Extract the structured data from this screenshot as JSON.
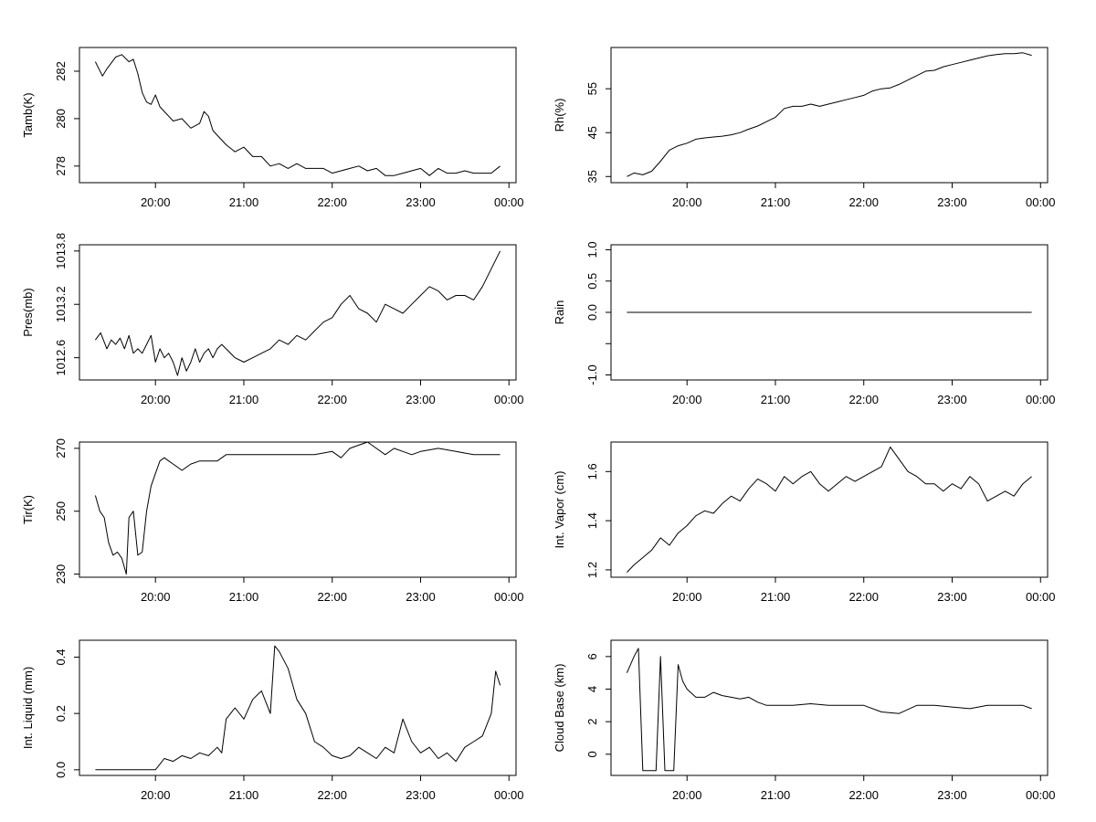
{
  "chart_data": [
    {
      "type": "line",
      "ylabel": "Tamb(K)",
      "ylim": [
        277.3,
        283.0
      ],
      "yticks": [
        "278",
        "280",
        "282"
      ],
      "xlim": [
        19.14,
        24.08
      ],
      "xticks": [
        "20:00",
        "21:00",
        "22:00",
        "23:00",
        "00:00"
      ],
      "x": [
        19.32,
        19.4,
        19.45,
        19.55,
        19.62,
        19.7,
        19.75,
        19.8,
        19.85,
        19.9,
        19.95,
        20.0,
        20.05,
        20.1,
        20.2,
        20.3,
        20.4,
        20.5,
        20.55,
        20.6,
        20.65,
        20.7,
        20.8,
        20.9,
        21.0,
        21.1,
        21.2,
        21.3,
        21.4,
        21.5,
        21.6,
        21.7,
        21.8,
        21.9,
        22.0,
        22.1,
        22.2,
        22.3,
        22.4,
        22.5,
        22.6,
        22.7,
        22.8,
        22.9,
        23.0,
        23.1,
        23.2,
        23.3,
        23.4,
        23.5,
        23.6,
        23.7,
        23.8,
        23.9
      ],
      "values": [
        282.4,
        281.8,
        282.1,
        282.6,
        282.7,
        282.4,
        282.5,
        281.9,
        281.1,
        280.7,
        280.6,
        281.0,
        280.5,
        280.3,
        279.9,
        280.0,
        279.6,
        279.8,
        280.3,
        280.1,
        279.5,
        279.3,
        278.9,
        278.6,
        278.8,
        278.4,
        278.4,
        278.0,
        278.1,
        277.9,
        278.1,
        277.9,
        277.9,
        277.9,
        277.7,
        277.8,
        277.9,
        278.0,
        277.8,
        277.9,
        277.6,
        277.6,
        277.7,
        277.8,
        277.9,
        277.6,
        277.9,
        277.7,
        277.7,
        277.8,
        277.7,
        277.7,
        277.7,
        278.0
      ]
    },
    {
      "type": "line",
      "ylabel": "Rh(%)",
      "ylim": [
        33.6,
        64.4
      ],
      "yticks": [
        "35",
        "45",
        "55"
      ],
      "xlim": [
        19.14,
        24.08
      ],
      "xticks": [
        "20:00",
        "21:00",
        "22:00",
        "23:00",
        "00:00"
      ],
      "x": [
        19.32,
        19.4,
        19.5,
        19.6,
        19.7,
        19.8,
        19.9,
        20.0,
        20.1,
        20.2,
        20.3,
        20.4,
        20.5,
        20.6,
        20.7,
        20.8,
        20.9,
        21.0,
        21.1,
        21.2,
        21.3,
        21.4,
        21.5,
        21.6,
        21.7,
        21.8,
        21.9,
        22.0,
        22.1,
        22.2,
        22.3,
        22.4,
        22.5,
        22.6,
        22.7,
        22.8,
        22.9,
        23.0,
        23.1,
        23.2,
        23.3,
        23.4,
        23.5,
        23.6,
        23.7,
        23.8,
        23.9
      ],
      "values": [
        35.0,
        35.8,
        35.4,
        36.2,
        38.5,
        41.0,
        42.0,
        42.6,
        43.5,
        43.8,
        44.0,
        44.2,
        44.5,
        45.0,
        45.8,
        46.5,
        47.5,
        48.5,
        50.5,
        51.0,
        51.0,
        51.5,
        51.0,
        51.5,
        52.0,
        52.5,
        53.0,
        53.5,
        54.5,
        55.0,
        55.2,
        56.0,
        57.0,
        58.0,
        59.0,
        59.2,
        60.0,
        60.5,
        61.0,
        61.5,
        62.0,
        62.5,
        62.8,
        63.0,
        63.0,
        63.2,
        62.6
      ]
    },
    {
      "type": "line",
      "ylabel": "Pres(mb)",
      "ylim": [
        1012.35,
        1013.87
      ],
      "yticks": [
        "1012.6",
        "1013.2",
        "1013.8"
      ],
      "xlim": [
        19.14,
        24.08
      ],
      "xticks": [
        "20:00",
        "21:00",
        "22:00",
        "23:00",
        "00:00"
      ],
      "x": [
        19.32,
        19.38,
        19.45,
        19.5,
        19.55,
        19.6,
        19.65,
        19.7,
        19.75,
        19.8,
        19.85,
        19.9,
        19.95,
        20.0,
        20.05,
        20.1,
        20.15,
        20.2,
        20.25,
        20.3,
        20.35,
        20.4,
        20.45,
        20.5,
        20.55,
        20.6,
        20.65,
        20.7,
        20.75,
        20.8,
        20.9,
        21.0,
        21.1,
        21.2,
        21.3,
        21.4,
        21.5,
        21.6,
        21.7,
        21.8,
        21.9,
        22.0,
        22.1,
        22.2,
        22.3,
        22.4,
        22.5,
        22.6,
        22.7,
        22.8,
        22.9,
        23.0,
        23.1,
        23.2,
        23.3,
        23.4,
        23.5,
        23.6,
        23.7,
        23.8,
        23.9
      ],
      "values": [
        1012.8,
        1012.88,
        1012.7,
        1012.8,
        1012.75,
        1012.82,
        1012.7,
        1012.85,
        1012.65,
        1012.7,
        1012.65,
        1012.75,
        1012.85,
        1012.55,
        1012.7,
        1012.6,
        1012.65,
        1012.55,
        1012.4,
        1012.6,
        1012.45,
        1012.55,
        1012.7,
        1012.55,
        1012.65,
        1012.7,
        1012.6,
        1012.7,
        1012.75,
        1012.7,
        1012.6,
        1012.55,
        1012.6,
        1012.65,
        1012.7,
        1012.8,
        1012.75,
        1012.85,
        1012.8,
        1012.9,
        1013.0,
        1013.05,
        1013.2,
        1013.3,
        1013.15,
        1013.1,
        1013.0,
        1013.2,
        1013.15,
        1013.1,
        1013.2,
        1013.3,
        1013.4,
        1013.35,
        1013.25,
        1013.3,
        1013.3,
        1013.25,
        1013.4,
        1013.6,
        1013.8
      ]
    },
    {
      "type": "line",
      "ylabel": "Rain",
      "ylim": [
        -1.08,
        1.08
      ],
      "yticks": [
        "-1.0",
        "",
        "0.0",
        "0.5",
        "1.0"
      ],
      "ytick_values": [
        -1.0,
        -0.5,
        0.0,
        0.5,
        1.0
      ],
      "xlim": [
        19.14,
        24.08
      ],
      "xticks": [
        "20:00",
        "21:00",
        "22:00",
        "23:00",
        "00:00"
      ],
      "x": [
        19.32,
        23.9
      ],
      "values": [
        0.0,
        0.0
      ]
    },
    {
      "type": "line",
      "ylabel": "Tir(K)",
      "ylim": [
        229.0,
        272.0
      ],
      "yticks": [
        "230",
        "250",
        "270"
      ],
      "xlim": [
        19.14,
        24.08
      ],
      "xticks": [
        "20:00",
        "21:00",
        "22:00",
        "23:00",
        "00:00"
      ],
      "x": [
        19.32,
        19.37,
        19.42,
        19.47,
        19.52,
        19.57,
        19.62,
        19.67,
        19.7,
        19.75,
        19.8,
        19.85,
        19.9,
        19.95,
        20.0,
        20.05,
        20.1,
        20.15,
        20.2,
        20.25,
        20.3,
        20.4,
        20.5,
        20.6,
        20.7,
        20.8,
        20.9,
        21.0,
        21.2,
        21.4,
        21.6,
        21.8,
        22.0,
        22.1,
        22.2,
        22.3,
        22.4,
        22.5,
        22.6,
        22.7,
        22.8,
        22.9,
        23.0,
        23.2,
        23.4,
        23.6,
        23.8,
        23.9
      ],
      "values": [
        255,
        250,
        248,
        240,
        236,
        237,
        235,
        230,
        248,
        250,
        236,
        237,
        250,
        258,
        262,
        266,
        267,
        266,
        265,
        264,
        263,
        265,
        266,
        266,
        266,
        268,
        268,
        268,
        268,
        268,
        268,
        268,
        269,
        267,
        270,
        271,
        272,
        270,
        268,
        270,
        269,
        268,
        269,
        270,
        269,
        268,
        268,
        268
      ]
    },
    {
      "type": "line",
      "ylabel": "Int. Vapor (cm)",
      "ylim": [
        1.17,
        1.72
      ],
      "yticks": [
        "1.2",
        "1.4",
        "1.6"
      ],
      "xlim": [
        19.14,
        24.08
      ],
      "xticks": [
        "20:00",
        "21:00",
        "22:00",
        "23:00",
        "00:00"
      ],
      "x": [
        19.32,
        19.4,
        19.5,
        19.6,
        19.7,
        19.8,
        19.9,
        20.0,
        20.1,
        20.2,
        20.3,
        20.4,
        20.5,
        20.6,
        20.7,
        20.8,
        20.9,
        21.0,
        21.1,
        21.2,
        21.3,
        21.4,
        21.5,
        21.6,
        21.7,
        21.8,
        21.9,
        22.0,
        22.1,
        22.2,
        22.3,
        22.4,
        22.5,
        22.6,
        22.7,
        22.8,
        22.9,
        23.0,
        23.1,
        23.2,
        23.3,
        23.4,
        23.5,
        23.6,
        23.7,
        23.8,
        23.9
      ],
      "values": [
        1.19,
        1.22,
        1.25,
        1.28,
        1.33,
        1.3,
        1.35,
        1.38,
        1.42,
        1.44,
        1.43,
        1.47,
        1.5,
        1.48,
        1.53,
        1.57,
        1.55,
        1.52,
        1.58,
        1.55,
        1.58,
        1.6,
        1.55,
        1.52,
        1.55,
        1.58,
        1.56,
        1.58,
        1.6,
        1.62,
        1.7,
        1.65,
        1.6,
        1.58,
        1.55,
        1.55,
        1.52,
        1.55,
        1.53,
        1.58,
        1.55,
        1.48,
        1.5,
        1.52,
        1.5,
        1.55,
        1.58
      ]
    },
    {
      "type": "line",
      "ylabel": "Int. Liquid (mm)",
      "ylim": [
        -0.02,
        0.46
      ],
      "yticks": [
        "0.0",
        "0.2",
        "0.4"
      ],
      "xlim": [
        19.14,
        24.08
      ],
      "xticks": [
        "20:00",
        "21:00",
        "22:00",
        "23:00",
        "00:00"
      ],
      "x": [
        19.32,
        19.6,
        20.0,
        20.05,
        20.1,
        20.2,
        20.3,
        20.4,
        20.5,
        20.6,
        20.7,
        20.75,
        20.8,
        20.9,
        21.0,
        21.1,
        21.2,
        21.3,
        21.35,
        21.4,
        21.5,
        21.6,
        21.7,
        21.8,
        21.9,
        22.0,
        22.1,
        22.2,
        22.3,
        22.4,
        22.5,
        22.6,
        22.7,
        22.8,
        22.9,
        23.0,
        23.1,
        23.2,
        23.3,
        23.4,
        23.5,
        23.6,
        23.7,
        23.8,
        23.85,
        23.9
      ],
      "values": [
        0.0,
        0.0,
        0.0,
        0.02,
        0.04,
        0.03,
        0.05,
        0.04,
        0.06,
        0.05,
        0.08,
        0.06,
        0.18,
        0.22,
        0.18,
        0.25,
        0.28,
        0.2,
        0.44,
        0.42,
        0.36,
        0.25,
        0.2,
        0.1,
        0.08,
        0.05,
        0.04,
        0.05,
        0.08,
        0.06,
        0.04,
        0.08,
        0.06,
        0.18,
        0.1,
        0.06,
        0.08,
        0.04,
        0.06,
        0.03,
        0.08,
        0.1,
        0.12,
        0.2,
        0.35,
        0.3
      ]
    },
    {
      "type": "line",
      "ylabel": "Cloud Base (km)",
      "ylim": [
        -1.3,
        7.0
      ],
      "yticks": [
        "0",
        "2",
        "4",
        "6"
      ],
      "xlim": [
        19.14,
        24.08
      ],
      "xticks": [
        "20:00",
        "21:00",
        "22:00",
        "23:00",
        "00:00"
      ],
      "x": [
        19.32,
        19.4,
        19.45,
        19.5,
        19.55,
        19.6,
        19.65,
        19.7,
        19.75,
        19.8,
        19.85,
        19.9,
        19.95,
        20.0,
        20.1,
        20.2,
        20.3,
        20.4,
        20.5,
        20.6,
        20.7,
        20.8,
        20.9,
        21.0,
        21.2,
        21.4,
        21.6,
        21.8,
        22.0,
        22.2,
        22.4,
        22.6,
        22.8,
        23.0,
        23.2,
        23.4,
        23.6,
        23.8,
        23.9
      ],
      "values": [
        5.0,
        6.0,
        6.5,
        -1.0,
        -1.0,
        -1.0,
        -1.0,
        6.0,
        -1.0,
        -1.0,
        -1.0,
        5.5,
        4.5,
        4.0,
        3.5,
        3.5,
        3.8,
        3.6,
        3.5,
        3.4,
        3.5,
        3.2,
        3.0,
        3.0,
        3.0,
        3.1,
        3.0,
        3.0,
        3.0,
        2.6,
        2.5,
        3.0,
        3.0,
        2.9,
        2.8,
        3.0,
        3.0,
        3.0,
        2.8
      ]
    }
  ]
}
